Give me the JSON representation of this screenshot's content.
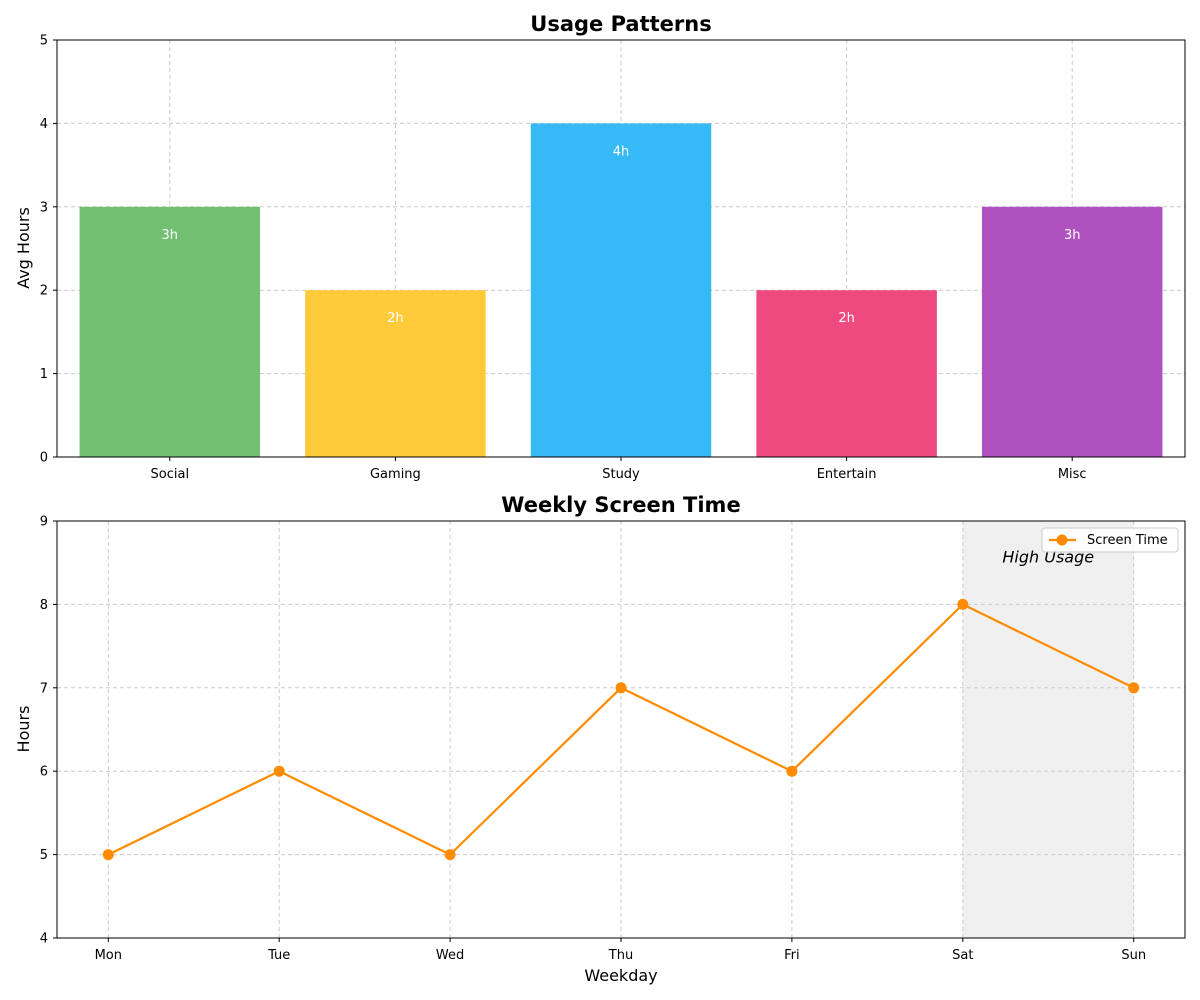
{
  "chart_data": [
    {
      "type": "bar",
      "title": "Usage Patterns",
      "xlabel": "",
      "ylabel": "Avg Hours",
      "ylim": [
        0,
        5
      ],
      "yticks": [
        0,
        1,
        2,
        3,
        4,
        5
      ],
      "grid": true,
      "categories": [
        "Social",
        "Gaming",
        "Study",
        "Entertain",
        "Misc"
      ],
      "values": [
        3,
        2,
        4,
        2,
        3
      ],
      "data_labels": [
        "3h",
        "2h",
        "4h",
        "2h",
        "3h"
      ],
      "colors": [
        "#72bf72",
        "#ffca3a",
        "#37b9f5",
        "#ef4a80",
        "#ae52bf"
      ]
    },
    {
      "type": "line",
      "title": "Weekly Screen Time",
      "xlabel": "Weekday",
      "ylabel": "Hours",
      "ylim": [
        4,
        9
      ],
      "yticks": [
        4,
        5,
        6,
        7,
        8,
        9
      ],
      "grid": true,
      "legend": "top-right",
      "x": [
        "Mon",
        "Tue",
        "Wed",
        "Thu",
        "Fri",
        "Sat",
        "Sun"
      ],
      "series": [
        {
          "name": "Screen Time",
          "values": [
            5,
            6,
            5,
            7,
            6,
            8,
            7
          ],
          "color": "#ff8c00"
        }
      ],
      "highlight": {
        "from": "Sat",
        "to": "Sun",
        "label": "High Usage",
        "color": "#f0f0f0"
      }
    }
  ]
}
